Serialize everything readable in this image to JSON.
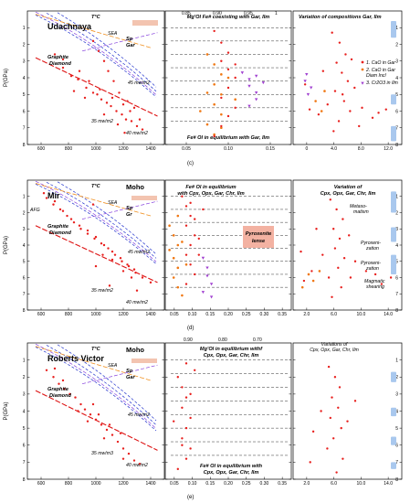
{
  "figure": {
    "background": "#ffffff",
    "colors": {
      "point_red": "#e8201e",
      "point_orange": "#f07814",
      "point_purple": "#a040d0",
      "geotherm_blue": "#2233cc",
      "geotherm_purple": "#8844dd",
      "graphite_diamond_red": "#dd1111",
      "sea_orange": "#f09020",
      "moho_band": "#f3c4b0",
      "pyroxenite_box": "#f3b2a2",
      "side_bar": "#a9c8ee"
    }
  },
  "chart_data": [
    {
      "panel": "c-left",
      "type": "scatter",
      "title": "T°C",
      "site": "Udachnaya",
      "ylabel": "P(GPa)",
      "xlim": [
        500,
        1500
      ],
      "ylim": [
        8,
        0
      ],
      "xticks": [
        "600",
        "800",
        "1000",
        "1200",
        "1400"
      ],
      "yticks": [
        "1",
        "2",
        "3",
        "4",
        "5",
        "6",
        "7",
        "8"
      ],
      "annotations": [
        "SEA",
        "Sp",
        "Gar",
        "Graphite",
        "Diamond",
        "45 mw/m2",
        "35 mw/m2",
        "40 mw/m2"
      ],
      "points": [
        [
          760,
          3.4
        ],
        [
          820,
          3.9
        ],
        [
          870,
          4.1
        ],
        [
          930,
          4.6
        ],
        [
          980,
          4.9
        ],
        [
          1010,
          5.0
        ],
        [
          1040,
          5.3
        ],
        [
          1080,
          5.5
        ],
        [
          1110,
          5.7
        ],
        [
          1150,
          6.0
        ],
        [
          1190,
          6.2
        ],
        [
          1220,
          6.5
        ],
        [
          1260,
          6.6
        ],
        [
          1300,
          6.9
        ],
        [
          1340,
          7.1
        ],
        [
          880,
          3.6
        ],
        [
          950,
          4.2
        ],
        [
          1030,
          4.7
        ],
        [
          1120,
          5.2
        ],
        [
          1200,
          5.6
        ],
        [
          1250,
          6.0
        ],
        [
          1320,
          6.5
        ],
        [
          700,
          2.6
        ],
        [
          760,
          2.9
        ],
        [
          980,
          1.8
        ],
        [
          1020,
          2.4
        ],
        [
          1060,
          3.0
        ],
        [
          1090,
          3.6
        ],
        [
          1130,
          4.2
        ],
        [
          1170,
          4.9
        ],
        [
          1230,
          5.4
        ],
        [
          1280,
          5.8
        ],
        [
          1160,
          6.8
        ],
        [
          1210,
          7.3
        ],
        [
          1060,
          6.2
        ],
        [
          920,
          5.2
        ],
        [
          840,
          4.8
        ]
      ]
    },
    {
      "panel": "c-mid",
      "type": "scatter",
      "title": "Mg'Ol Fe# coexisting with Gar, Ilm",
      "bottom_label": "Fe# Ol in equilibrium with Gar, Ilm",
      "xlim": [
        0.02,
        0.2
      ],
      "ylim": [
        8,
        0
      ],
      "xticks": [
        "0.05",
        "0.10",
        "0.15"
      ],
      "top_ticks": [
        "0.85",
        "0.90",
        "0.95",
        "1"
      ],
      "series_orange": [
        [
          0.08,
          2.6
        ],
        [
          0.09,
          3.2
        ],
        [
          0.1,
          3.8
        ],
        [
          0.09,
          4.4
        ],
        [
          0.1,
          5.0
        ],
        [
          0.09,
          5.6
        ],
        [
          0.1,
          6.2
        ],
        [
          0.08,
          6.8
        ],
        [
          0.09,
          7.4
        ],
        [
          0.11,
          4.0
        ],
        [
          0.08,
          4.9
        ],
        [
          0.12,
          5.3
        ],
        [
          0.07,
          6.0
        ],
        [
          0.1,
          7.0
        ]
      ],
      "series_red": [
        [
          0.09,
          1.2
        ],
        [
          0.1,
          1.9
        ],
        [
          0.11,
          2.5
        ],
        [
          0.1,
          3.0
        ],
        [
          0.11,
          3.5
        ],
        [
          0.12,
          4.0
        ],
        [
          0.11,
          4.6
        ],
        [
          0.1,
          5.2
        ],
        [
          0.12,
          5.8
        ],
        [
          0.11,
          6.3
        ],
        [
          0.1,
          6.9
        ],
        [
          0.09,
          7.5
        ],
        [
          0.12,
          3.2
        ]
      ],
      "series_purple": [
        [
          0.13,
          3.7
        ],
        [
          0.14,
          4.1
        ],
        [
          0.14,
          4.5
        ],
        [
          0.15,
          4.9
        ],
        [
          0.15,
          5.3
        ],
        [
          0.14,
          5.7
        ],
        [
          0.16,
          4.3
        ],
        [
          0.15,
          3.9
        ]
      ]
    },
    {
      "panel": "c-right",
      "type": "scatter",
      "title": "Variation of  compositions  Gar, Ilm",
      "xlim": [
        -1,
        13.5
      ],
      "ylim": [
        8,
        0
      ],
      "xticks": [
        "0",
        "4.0",
        "8.0",
        "12.0"
      ],
      "legend": [
        "1. CaO in Gar",
        "2. CaO in Gar Diam Incl",
        "3. Cr2O3 in Ilm"
      ],
      "points": [
        [
          4.2,
          1.3
        ],
        [
          5.2,
          1.9
        ],
        [
          6.0,
          2.6
        ],
        [
          4.8,
          3.1
        ],
        [
          5.5,
          3.7
        ],
        [
          6.3,
          4.2
        ],
        [
          4.6,
          4.8
        ],
        [
          5.8,
          5.4
        ],
        [
          6.6,
          6.0
        ],
        [
          5.1,
          6.6
        ],
        [
          4.4,
          7.2
        ],
        [
          7.2,
          4.6
        ],
        [
          3.6,
          5.6
        ],
        [
          8.2,
          5.8
        ],
        [
          9.6,
          6.4
        ],
        [
          2.4,
          6.2
        ],
        [
          1.2,
          5.9
        ],
        [
          0.6,
          4.4
        ],
        [
          3.0,
          3.6
        ],
        [
          7.8,
          6.9
        ],
        [
          10.4,
          6.1
        ],
        [
          11.4,
          5.9
        ],
        [
          6.8,
          2.9
        ],
        [
          5.6,
          5.0
        ]
      ],
      "side_bars": [
        [
          0.6,
          1.6
        ],
        [
          5.0,
          5.6
        ],
        [
          6.9,
          7.8
        ]
      ]
    },
    {
      "panel": "d-left",
      "type": "scatter",
      "title": "T°C",
      "site": "Mir",
      "moho": "Moho",
      "ylabel": "P(GPa)",
      "xlim": [
        500,
        1500
      ],
      "ylim": [
        8,
        0
      ],
      "xticks": [
        "600",
        "800",
        "1000",
        "1200",
        "1400"
      ],
      "yticks": [
        "1",
        "2",
        "3",
        "4",
        "5",
        "6",
        "7",
        "8"
      ],
      "annotations": [
        "AFG",
        "SEA",
        "Sp",
        "Gr",
        "Graphite",
        "Diamond",
        "45 mw/m2",
        "35 mw/m2",
        "40 mw/m2"
      ],
      "points": [
        [
          640,
          1.1
        ],
        [
          690,
          1.5
        ],
        [
          740,
          1.8
        ],
        [
          790,
          2.2
        ],
        [
          840,
          2.6
        ],
        [
          890,
          3.0
        ],
        [
          940,
          3.3
        ],
        [
          990,
          3.6
        ],
        [
          1040,
          3.9
        ],
        [
          1090,
          4.2
        ],
        [
          1140,
          4.6
        ],
        [
          1190,
          5.0
        ],
        [
          1240,
          5.3
        ],
        [
          1290,
          5.7
        ],
        [
          1340,
          6.0
        ],
        [
          700,
          1.3
        ],
        [
          760,
          1.9
        ],
        [
          820,
          2.4
        ],
        [
          880,
          2.8
        ],
        [
          940,
          3.1
        ],
        [
          1000,
          3.5
        ],
        [
          1060,
          4.0
        ],
        [
          1120,
          4.4
        ],
        [
          1180,
          4.8
        ],
        [
          1230,
          5.2
        ],
        [
          1280,
          5.5
        ],
        [
          1400,
          6.3
        ],
        [
          1120,
          4.9
        ],
        [
          1200,
          5.6
        ],
        [
          1260,
          6.0
        ],
        [
          1050,
          4.6
        ],
        [
          620,
          0.8
        ],
        [
          980,
          1.5
        ],
        [
          1000,
          5.3
        ],
        [
          1100,
          6.5
        ],
        [
          1300,
          6.8
        ]
      ]
    },
    {
      "panel": "d-mid",
      "type": "scatter",
      "title": "Fe# Ol in equilibrium with Cpx, Opx, Gar, Chr, Ilm",
      "xlim": [
        0.05,
        0.35
      ],
      "ylim": [
        8,
        0
      ],
      "xticks": [
        "0.05",
        "0.10",
        "0.15",
        "0.20",
        "0.25",
        "0.30",
        "0.35"
      ],
      "annotations": [
        "Pyroxenite lense"
      ],
      "series_orange": [
        [
          0.06,
          2.8
        ],
        [
          0.07,
          3.4
        ],
        [
          0.08,
          4.0
        ],
        [
          0.07,
          4.8
        ],
        [
          0.08,
          5.4
        ],
        [
          0.07,
          6.0
        ],
        [
          0.08,
          6.6
        ],
        [
          0.09,
          7.1
        ],
        [
          0.1,
          5.2
        ],
        [
          0.06,
          4.3
        ],
        [
          0.09,
          3.8
        ],
        [
          0.08,
          2.2
        ]
      ],
      "series_red": [
        [
          0.09,
          1.0
        ],
        [
          0.1,
          1.6
        ],
        [
          0.11,
          2.2
        ],
        [
          0.1,
          2.8
        ],
        [
          0.12,
          3.4
        ],
        [
          0.11,
          4.0
        ],
        [
          0.1,
          4.6
        ],
        [
          0.11,
          5.2
        ],
        [
          0.12,
          5.8
        ],
        [
          0.1,
          6.4
        ],
        [
          0.13,
          3.6
        ],
        [
          0.12,
          2.4
        ],
        [
          0.11,
          1.4
        ],
        [
          0.14,
          1.8
        ],
        [
          0.13,
          4.6
        ]
      ],
      "series_purple": [
        [
          0.14,
          4.8
        ],
        [
          0.15,
          5.4
        ],
        [
          0.15,
          5.9
        ],
        [
          0.16,
          6.4
        ],
        [
          0.14,
          6.9
        ],
        [
          0.16,
          7.2
        ]
      ]
    },
    {
      "panel": "d-right",
      "type": "scatter",
      "title": "Variation of Cpx, Opx, Gar, Chr, Ilm",
      "xlim": [
        0,
        14
      ],
      "ylim": [
        8,
        0
      ],
      "xticks": [
        "2.0",
        "6.0",
        "10.0",
        "14.0"
      ],
      "annotations": [
        "Metasomatism",
        "Pyroxenization",
        "Pyroxenization",
        "Magmatic shearing"
      ],
      "points": [
        [
          4.8,
          1.2
        ],
        [
          5.6,
          1.8
        ],
        [
          6.4,
          2.4
        ],
        [
          5.2,
          3.0
        ],
        [
          6.0,
          3.6
        ],
        [
          5.4,
          4.2
        ],
        [
          6.6,
          4.8
        ],
        [
          5.8,
          5.4
        ],
        [
          4.6,
          6.0
        ],
        [
          6.2,
          6.6
        ],
        [
          7.2,
          3.4
        ],
        [
          3.8,
          4.6
        ],
        [
          8.0,
          5.0
        ],
        [
          9.4,
          5.6
        ],
        [
          2.4,
          5.6
        ],
        [
          1.4,
          6.2
        ],
        [
          1.0,
          4.4
        ],
        [
          3.0,
          3.0
        ],
        [
          7.4,
          6.0
        ],
        [
          10.6,
          5.8
        ],
        [
          12.6,
          6.0
        ],
        [
          11.4,
          6.4
        ],
        [
          5.0,
          7.2
        ]
      ],
      "side_bars": [
        [
          0.7,
          2.0
        ],
        [
          2.9,
          3.8
        ],
        [
          4.6,
          5.8
        ]
      ]
    },
    {
      "panel": "e-left",
      "type": "scatter",
      "title": "T°C",
      "site": "Roberts Victor",
      "moho": "Moho",
      "ylabel": "P(GPa)",
      "xlim": [
        500,
        1500
      ],
      "ylim": [
        8,
        0
      ],
      "xticks": [
        "600",
        "800",
        "1000",
        "1200",
        "1400"
      ],
      "yticks": [
        "1",
        "2",
        "3",
        "4",
        "5",
        "6",
        "7",
        "8"
      ],
      "annotations": [
        "SEA",
        "Sp",
        "Gar",
        "Graphite",
        "Diamond",
        "45 mw/m2",
        "35 mw/m3",
        "40 mw/m2"
      ],
      "points": [
        [
          640,
          1.6
        ],
        [
          690,
          2.0
        ],
        [
          730,
          2.4
        ],
        [
          770,
          2.7
        ],
        [
          810,
          3.0
        ],
        [
          850,
          3.2
        ],
        [
          890,
          3.6
        ],
        [
          920,
          3.9
        ],
        [
          960,
          4.2
        ],
        [
          1000,
          4.5
        ],
        [
          1040,
          4.8
        ],
        [
          1080,
          5.1
        ],
        [
          1120,
          5.4
        ],
        [
          1160,
          5.8
        ],
        [
          1200,
          6.2
        ],
        [
          1240,
          6.5
        ],
        [
          1280,
          6.9
        ],
        [
          1320,
          7.1
        ],
        [
          980,
          3.6
        ],
        [
          1020,
          4.2
        ],
        [
          1100,
          4.8
        ],
        [
          1180,
          5.3
        ],
        [
          870,
          4.0
        ],
        [
          940,
          4.6
        ],
        [
          1060,
          5.6
        ],
        [
          1200,
          6.8
        ],
        [
          760,
          2.2
        ],
        [
          700,
          1.5
        ]
      ]
    },
    {
      "panel": "e-mid",
      "type": "scatter",
      "title": "Mg'Ol in equilibrium withf Cpx, Opx, Gar, Chr, Ilm",
      "bottom_label": "Fe# Ol in equilibrium with Cpx, Opx, Gar, Chr, Ilm",
      "xlim": [
        0.05,
        0.35
      ],
      "ylim": [
        8,
        0
      ],
      "xticks": [
        "0.05",
        "0.10",
        "0.15",
        "0.20",
        "0.25",
        "0.30",
        "0.35"
      ],
      "top_ticks": [
        "0.90",
        "0.80",
        "0.70"
      ],
      "series_red": [
        [
          0.08,
          2.0
        ],
        [
          0.09,
          2.6
        ],
        [
          0.1,
          3.2
        ],
        [
          0.09,
          3.8
        ],
        [
          0.11,
          4.4
        ],
        [
          0.1,
          5.0
        ],
        [
          0.09,
          5.6
        ],
        [
          0.11,
          6.2
        ],
        [
          0.1,
          6.8
        ],
        [
          0.08,
          7.4
        ],
        [
          0.12,
          1.6
        ],
        [
          0.1,
          1.2
        ],
        [
          0.07,
          4.6
        ],
        [
          0.11,
          3.0
        ],
        [
          0.09,
          6.0
        ]
      ]
    },
    {
      "panel": "e-right",
      "type": "scatter",
      "title": "Variations of Cpx, Opx, Gar, Chr, Ilm",
      "xlim": [
        0,
        14
      ],
      "ylim": [
        8,
        0
      ],
      "xticks": [
        "2.0",
        "6.0",
        "10.0",
        "14.0"
      ],
      "points": [
        [
          4.6,
          1.4
        ],
        [
          5.4,
          2.0
        ],
        [
          6.0,
          2.6
        ],
        [
          5.0,
          3.2
        ],
        [
          5.8,
          3.8
        ],
        [
          4.8,
          4.4
        ],
        [
          6.2,
          5.0
        ],
        [
          5.2,
          5.6
        ],
        [
          4.4,
          6.2
        ],
        [
          6.4,
          6.8
        ],
        [
          3.6,
          4.0
        ],
        [
          7.0,
          4.6
        ],
        [
          2.6,
          5.2
        ],
        [
          8.0,
          3.4
        ],
        [
          2.2,
          7.0
        ],
        [
          5.6,
          7.6
        ]
      ],
      "side_bars": [
        [
          1.7,
          2.3
        ],
        [
          3.8,
          4.3
        ],
        [
          5.5,
          6.0
        ],
        [
          7.0,
          7.4
        ]
      ]
    }
  ],
  "labels": {
    "c": "(c)",
    "d": "(d)",
    "e": "(e)",
    "legend_c": [
      "1. CaO in Gar",
      "2. CaO in Gar",
      "Diam Incl",
      "3. Cr2O3 in Ilm"
    ],
    "top_ticks_c": [
      "0.85",
      "0.90",
      "0.95",
      "1"
    ],
    "top_ticks_e": [
      "0.90",
      "0.80",
      "0.70"
    ],
    "pyroxenite": [
      "Pyroxenite",
      "lense"
    ],
    "d_right_notes": [
      "Metaso-",
      "matism",
      "Pyroxeni-",
      "zation",
      "Pyroxeni-",
      "zation",
      "Magmatic",
      "shearing"
    ]
  }
}
